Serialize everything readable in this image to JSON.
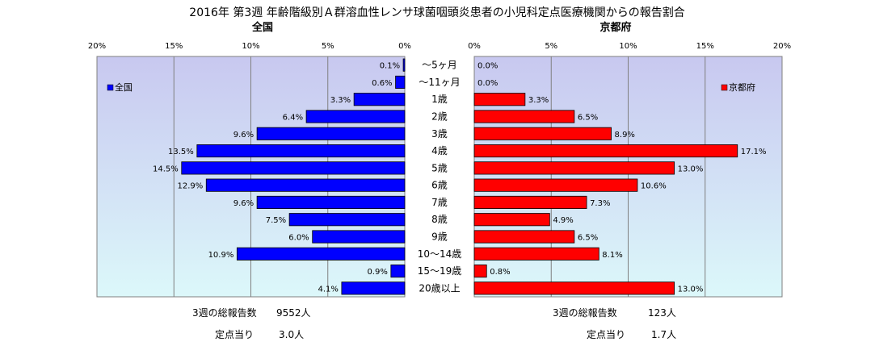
{
  "chart_data": {
    "type": "bar",
    "title": "2016年 第3週 年齢階級別Ａ群溶血性レンサ球菌咽頭炎患者の小児科定点医療機関からの報告割合",
    "categories": [
      "～5ヶ月",
      "～11ヶ月",
      "1歳",
      "2歳",
      "3歳",
      "4歳",
      "5歳",
      "6歳",
      "7歳",
      "8歳",
      "9歳",
      "10～14歳",
      "15～19歳",
      "20歳以上"
    ],
    "series": [
      {
        "name": "全国",
        "color": "#0000ff",
        "values": [
          0.1,
          0.6,
          3.3,
          6.4,
          9.6,
          13.5,
          14.5,
          12.9,
          9.6,
          7.5,
          6.0,
          10.9,
          0.9,
          4.1
        ],
        "labels": [
          "0.1%",
          "0.6%",
          "3.3%",
          "6.4%",
          "9.6%",
          "13.5%",
          "14.5%",
          "12.9%",
          "9.6%",
          "7.5%",
          "6.0%",
          "10.9%",
          "0.9%",
          "4.1%"
        ]
      },
      {
        "name": "京都府",
        "color": "#ff0000",
        "values": [
          0.0,
          0.0,
          3.3,
          6.5,
          8.9,
          17.1,
          13.0,
          10.6,
          7.3,
          4.9,
          6.5,
          8.1,
          0.8,
          13.0
        ],
        "labels": [
          "0.0%",
          "0.0%",
          "3.3%",
          "6.5%",
          "8.9%",
          "17.1%",
          "13.0%",
          "10.6%",
          "7.3%",
          "4.9%",
          "6.5%",
          "8.1%",
          "0.8%",
          "13.0%"
        ]
      }
    ],
    "left_panel": {
      "heading": "全国",
      "xlim": [
        0,
        20
      ],
      "ticks": [
        20,
        15,
        10,
        5,
        0
      ],
      "tick_labels": [
        "20%",
        "15%",
        "10%",
        "5%",
        "0%"
      ],
      "legend": "全国",
      "legend_position": "top-left"
    },
    "right_panel": {
      "heading": "京都府",
      "xlim": [
        0,
        20
      ],
      "ticks": [
        0,
        5,
        10,
        15,
        20
      ],
      "tick_labels": [
        "0%",
        "5%",
        "10%",
        "15%",
        "20%"
      ],
      "legend": "京都府",
      "legend_position": "top-right"
    },
    "grid": true,
    "colors": {
      "panel_gradient_top": "#c8c8f0",
      "panel_gradient_bottom": "#dcf8fa"
    }
  },
  "footer": {
    "left": {
      "reports_label": "3週の総報告数",
      "reports_value": "9552人",
      "per_label": "定点当り",
      "per_value": "3.0人"
    },
    "right": {
      "reports_label": "3週の総報告数",
      "reports_value": "123人",
      "per_label": "定点当り",
      "per_value": "1.7人"
    }
  }
}
